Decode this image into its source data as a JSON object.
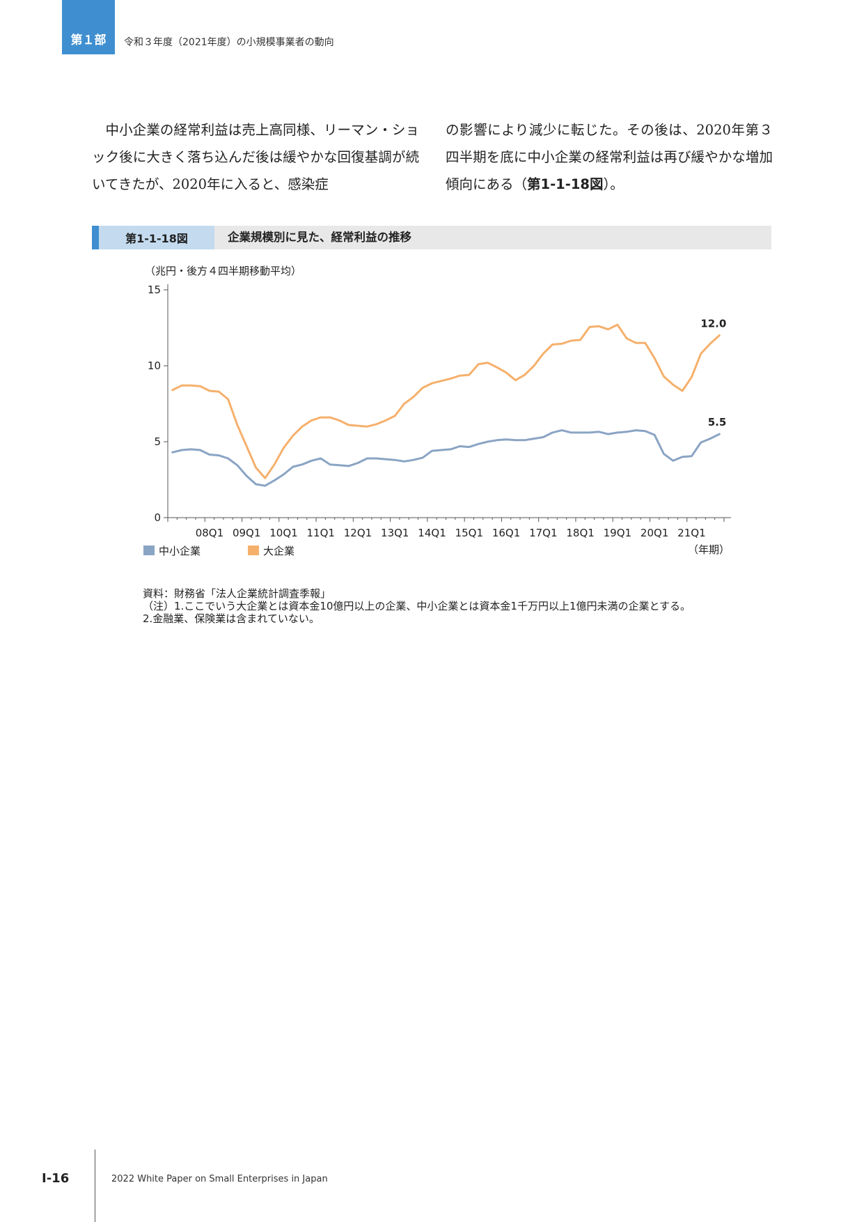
{
  "header": {
    "part_label": "第１部",
    "running_head": "令和３年度（2021年度）の小規模事業者の動向"
  },
  "body_text": {
    "left_column": "中小企業の経常利益は売上高同様、リーマン・ショック後に大きく落ち込んだ後は緩やかな回復基調が続いてきたが、2020年に入ると、感染症",
    "right_column_before": "の影響により減少に転じた。その後は、2020年第３四半期を底に中小企業の経常利益は再び緩やかな増加傾向にある（",
    "right_column_ref": "第1-1-18図",
    "right_column_after": "）。"
  },
  "figure": {
    "number": "第1-1-18図",
    "title": "企業規模別に見た、経常利益の推移"
  },
  "chart_data": {
    "type": "line",
    "ylabel": "（兆円・後方４四半期移動平均）",
    "xlabel": "（年期）",
    "ylim": [
      0,
      15
    ],
    "yticks": [
      0,
      5,
      10,
      15
    ],
    "x_tick_labels": [
      "08Q1",
      "09Q1",
      "10Q1",
      "11Q1",
      "12Q1",
      "13Q1",
      "14Q1",
      "15Q1",
      "16Q1",
      "17Q1",
      "18Q1",
      "19Q1",
      "20Q1",
      "21Q1"
    ],
    "x_start": "2007Q1",
    "legend_placement": "bottom-left",
    "grid": false,
    "series": [
      {
        "name": "中小企業",
        "color": "#8aa4c4",
        "end_label": "5.5",
        "values": [
          4.3,
          4.45,
          4.5,
          4.45,
          4.15,
          4.1,
          3.9,
          3.45,
          2.75,
          2.2,
          2.1,
          2.45,
          2.85,
          3.35,
          3.5,
          3.75,
          3.9,
          3.5,
          3.45,
          3.4,
          3.6,
          3.9,
          3.9,
          3.85,
          3.8,
          3.7,
          3.8,
          3.95,
          4.4,
          4.45,
          4.5,
          4.7,
          4.65,
          4.85,
          5.0,
          5.1,
          5.15,
          5.1,
          5.1,
          5.2,
          5.3,
          5.6,
          5.75,
          5.6,
          5.6,
          5.6,
          5.65,
          5.5,
          5.6,
          5.65,
          5.75,
          5.7,
          5.45,
          4.2,
          3.75,
          4.0,
          4.05,
          4.95,
          5.2,
          5.5
        ]
      },
      {
        "name": "大企業",
        "color": "#f5b06c",
        "end_label": "12.0",
        "values": [
          8.4,
          8.7,
          8.7,
          8.65,
          8.35,
          8.3,
          7.8,
          6.1,
          4.7,
          3.3,
          2.6,
          3.5,
          4.6,
          5.4,
          6.0,
          6.4,
          6.6,
          6.6,
          6.4,
          6.1,
          6.05,
          6.0,
          6.15,
          6.4,
          6.7,
          7.5,
          7.95,
          8.55,
          8.85,
          9.0,
          9.15,
          9.35,
          9.4,
          10.1,
          10.2,
          9.9,
          9.55,
          9.05,
          9.4,
          10.0,
          10.8,
          11.4,
          11.45,
          11.65,
          11.7,
          12.55,
          12.6,
          12.4,
          12.7,
          11.8,
          11.5,
          11.5,
          10.5,
          9.3,
          8.75,
          8.35,
          9.25,
          10.8,
          11.45,
          12.0
        ]
      }
    ]
  },
  "notes": {
    "source": "資料：財務省「法人企業統計調査季報」",
    "note1": "（注）1.ここでいう大企業とは資本金10億円以上の企業、中小企業とは資本金1千万円以上1億円未満の企業とする。",
    "note2": "2.金融業、保険業は含まれていない。"
  },
  "footer": {
    "page_number": "Ⅰ-16",
    "book_title": "2022 White Paper on Small Enterprises in Japan"
  }
}
